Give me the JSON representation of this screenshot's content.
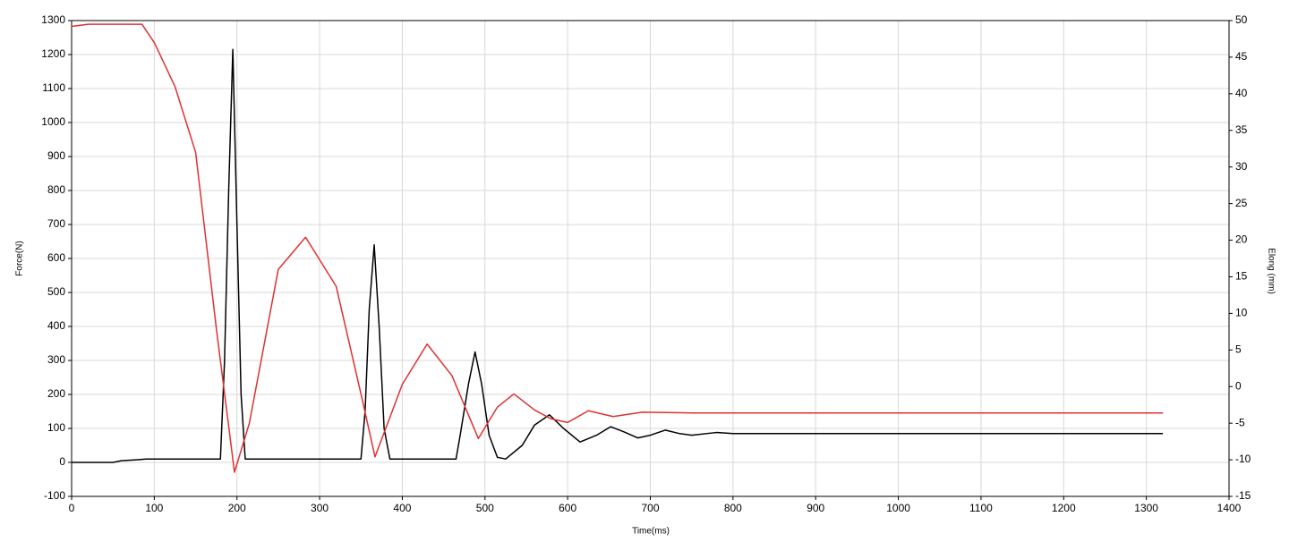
{
  "chart_data": {
    "type": "line",
    "xlabel": "Time(ms)",
    "ylabel": "Force(N)",
    "y2label": "Elong (mm)",
    "xlim": [
      0,
      1400
    ],
    "xticks": [
      0,
      100,
      200,
      300,
      400,
      500,
      600,
      700,
      800,
      900,
      1000,
      1100,
      1200,
      1300,
      1400
    ],
    "ylim": [
      -100,
      1300
    ],
    "yticks": [
      -100,
      0,
      100,
      200,
      300,
      400,
      500,
      600,
      700,
      800,
      900,
      1000,
      1100,
      1200,
      1300
    ],
    "y2lim": [
      -15,
      50
    ],
    "y2ticks": [
      -15,
      -10,
      -5,
      0,
      5,
      10,
      15,
      20,
      25,
      30,
      35,
      40,
      45,
      50
    ],
    "grid": true,
    "series": [
      {
        "name": "Force",
        "color": "#000000",
        "x": [
          0,
          50,
          60,
          80,
          90,
          180,
          185,
          190,
          195,
          200,
          205,
          210,
          300,
          350,
          355,
          360,
          366,
          372,
          378,
          385,
          450,
          465,
          470,
          480,
          488,
          496,
          505,
          515,
          525,
          545,
          560,
          578,
          595,
          615,
          635,
          652,
          668,
          685,
          700,
          718,
          735,
          750,
          780,
          800,
          1000,
          1320
        ],
        "values": [
          0,
          0,
          5,
          8,
          10,
          10,
          300,
          800,
          1215,
          700,
          200,
          10,
          10,
          10,
          150,
          450,
          640,
          400,
          100,
          10,
          10,
          10,
          80,
          230,
          325,
          230,
          80,
          15,
          10,
          50,
          110,
          140,
          100,
          60,
          80,
          105,
          90,
          72,
          80,
          95,
          85,
          80,
          88,
          85,
          85,
          85
        ]
      },
      {
        "name": "Elong",
        "color": "#e03030",
        "axis": "y2",
        "x": [
          0,
          20,
          85,
          100,
          125,
          150,
          175,
          197,
          215,
          250,
          283,
          320,
          350,
          367,
          400,
          430,
          460,
          492,
          515,
          535,
          560,
          580,
          600,
          625,
          655,
          690,
          750,
          1320
        ],
        "values": [
          49.2,
          49.5,
          49.5,
          47,
          41,
          32,
          8,
          -11.7,
          -5,
          16,
          20.4,
          13.7,
          -1,
          -9.6,
          0.3,
          5.8,
          1.5,
          -7.1,
          -2.8,
          -1,
          -3.2,
          -4.4,
          -4.9,
          -3.3,
          -4.1,
          -3.5,
          -3.6,
          -3.6
        ]
      }
    ]
  }
}
